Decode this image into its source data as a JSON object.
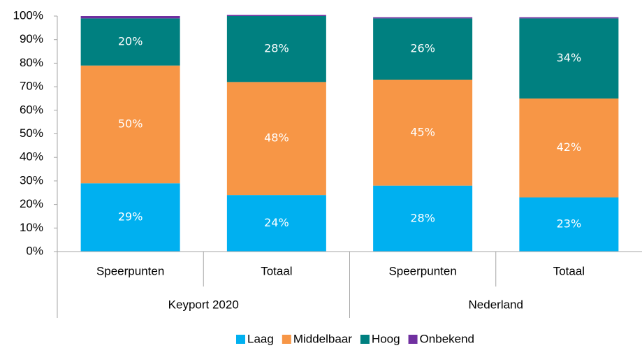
{
  "chart_data": {
    "type": "stacked_bar",
    "categories": [
      "Speerpunten",
      "Totaal",
      "Speerpunten",
      "Totaal"
    ],
    "groups": [
      "Keyport 2020",
      "Nederland"
    ],
    "series": [
      {
        "name": "Laag",
        "color": "#00b0f0",
        "values": [
          29,
          24,
          28,
          23
        ],
        "value_labels": [
          "29%",
          "24%",
          "28%",
          "23%"
        ]
      },
      {
        "name": "Middelbaar",
        "color": "#f79646",
        "values": [
          50,
          48,
          45,
          42
        ],
        "value_labels": [
          "50%",
          "48%",
          "45%",
          "42%"
        ]
      },
      {
        "name": "Hoog",
        "color": "#008080",
        "values": [
          20,
          28,
          26,
          34
        ],
        "value_labels": [
          "20%",
          "28%",
          "26%",
          "34%"
        ]
      },
      {
        "name": "Onbekend",
        "color": "#7030a0",
        "values": [
          1,
          0.5,
          0.5,
          0.5
        ]
      }
    ],
    "ylim": [
      0,
      100
    ],
    "yticks": [
      {
        "value": 0,
        "label": "0%"
      },
      {
        "value": 10,
        "label": "10%"
      },
      {
        "value": 20,
        "label": "20%"
      },
      {
        "value": 30,
        "label": "30%"
      },
      {
        "value": 40,
        "label": "40%"
      },
      {
        "value": 50,
        "label": "50%"
      },
      {
        "value": 60,
        "label": "60%"
      },
      {
        "value": 70,
        "label": "70%"
      },
      {
        "value": 80,
        "label": "80%"
      },
      {
        "value": 90,
        "label": "90%"
      },
      {
        "value": 100,
        "label": "100%"
      }
    ],
    "legend": "bottom"
  }
}
